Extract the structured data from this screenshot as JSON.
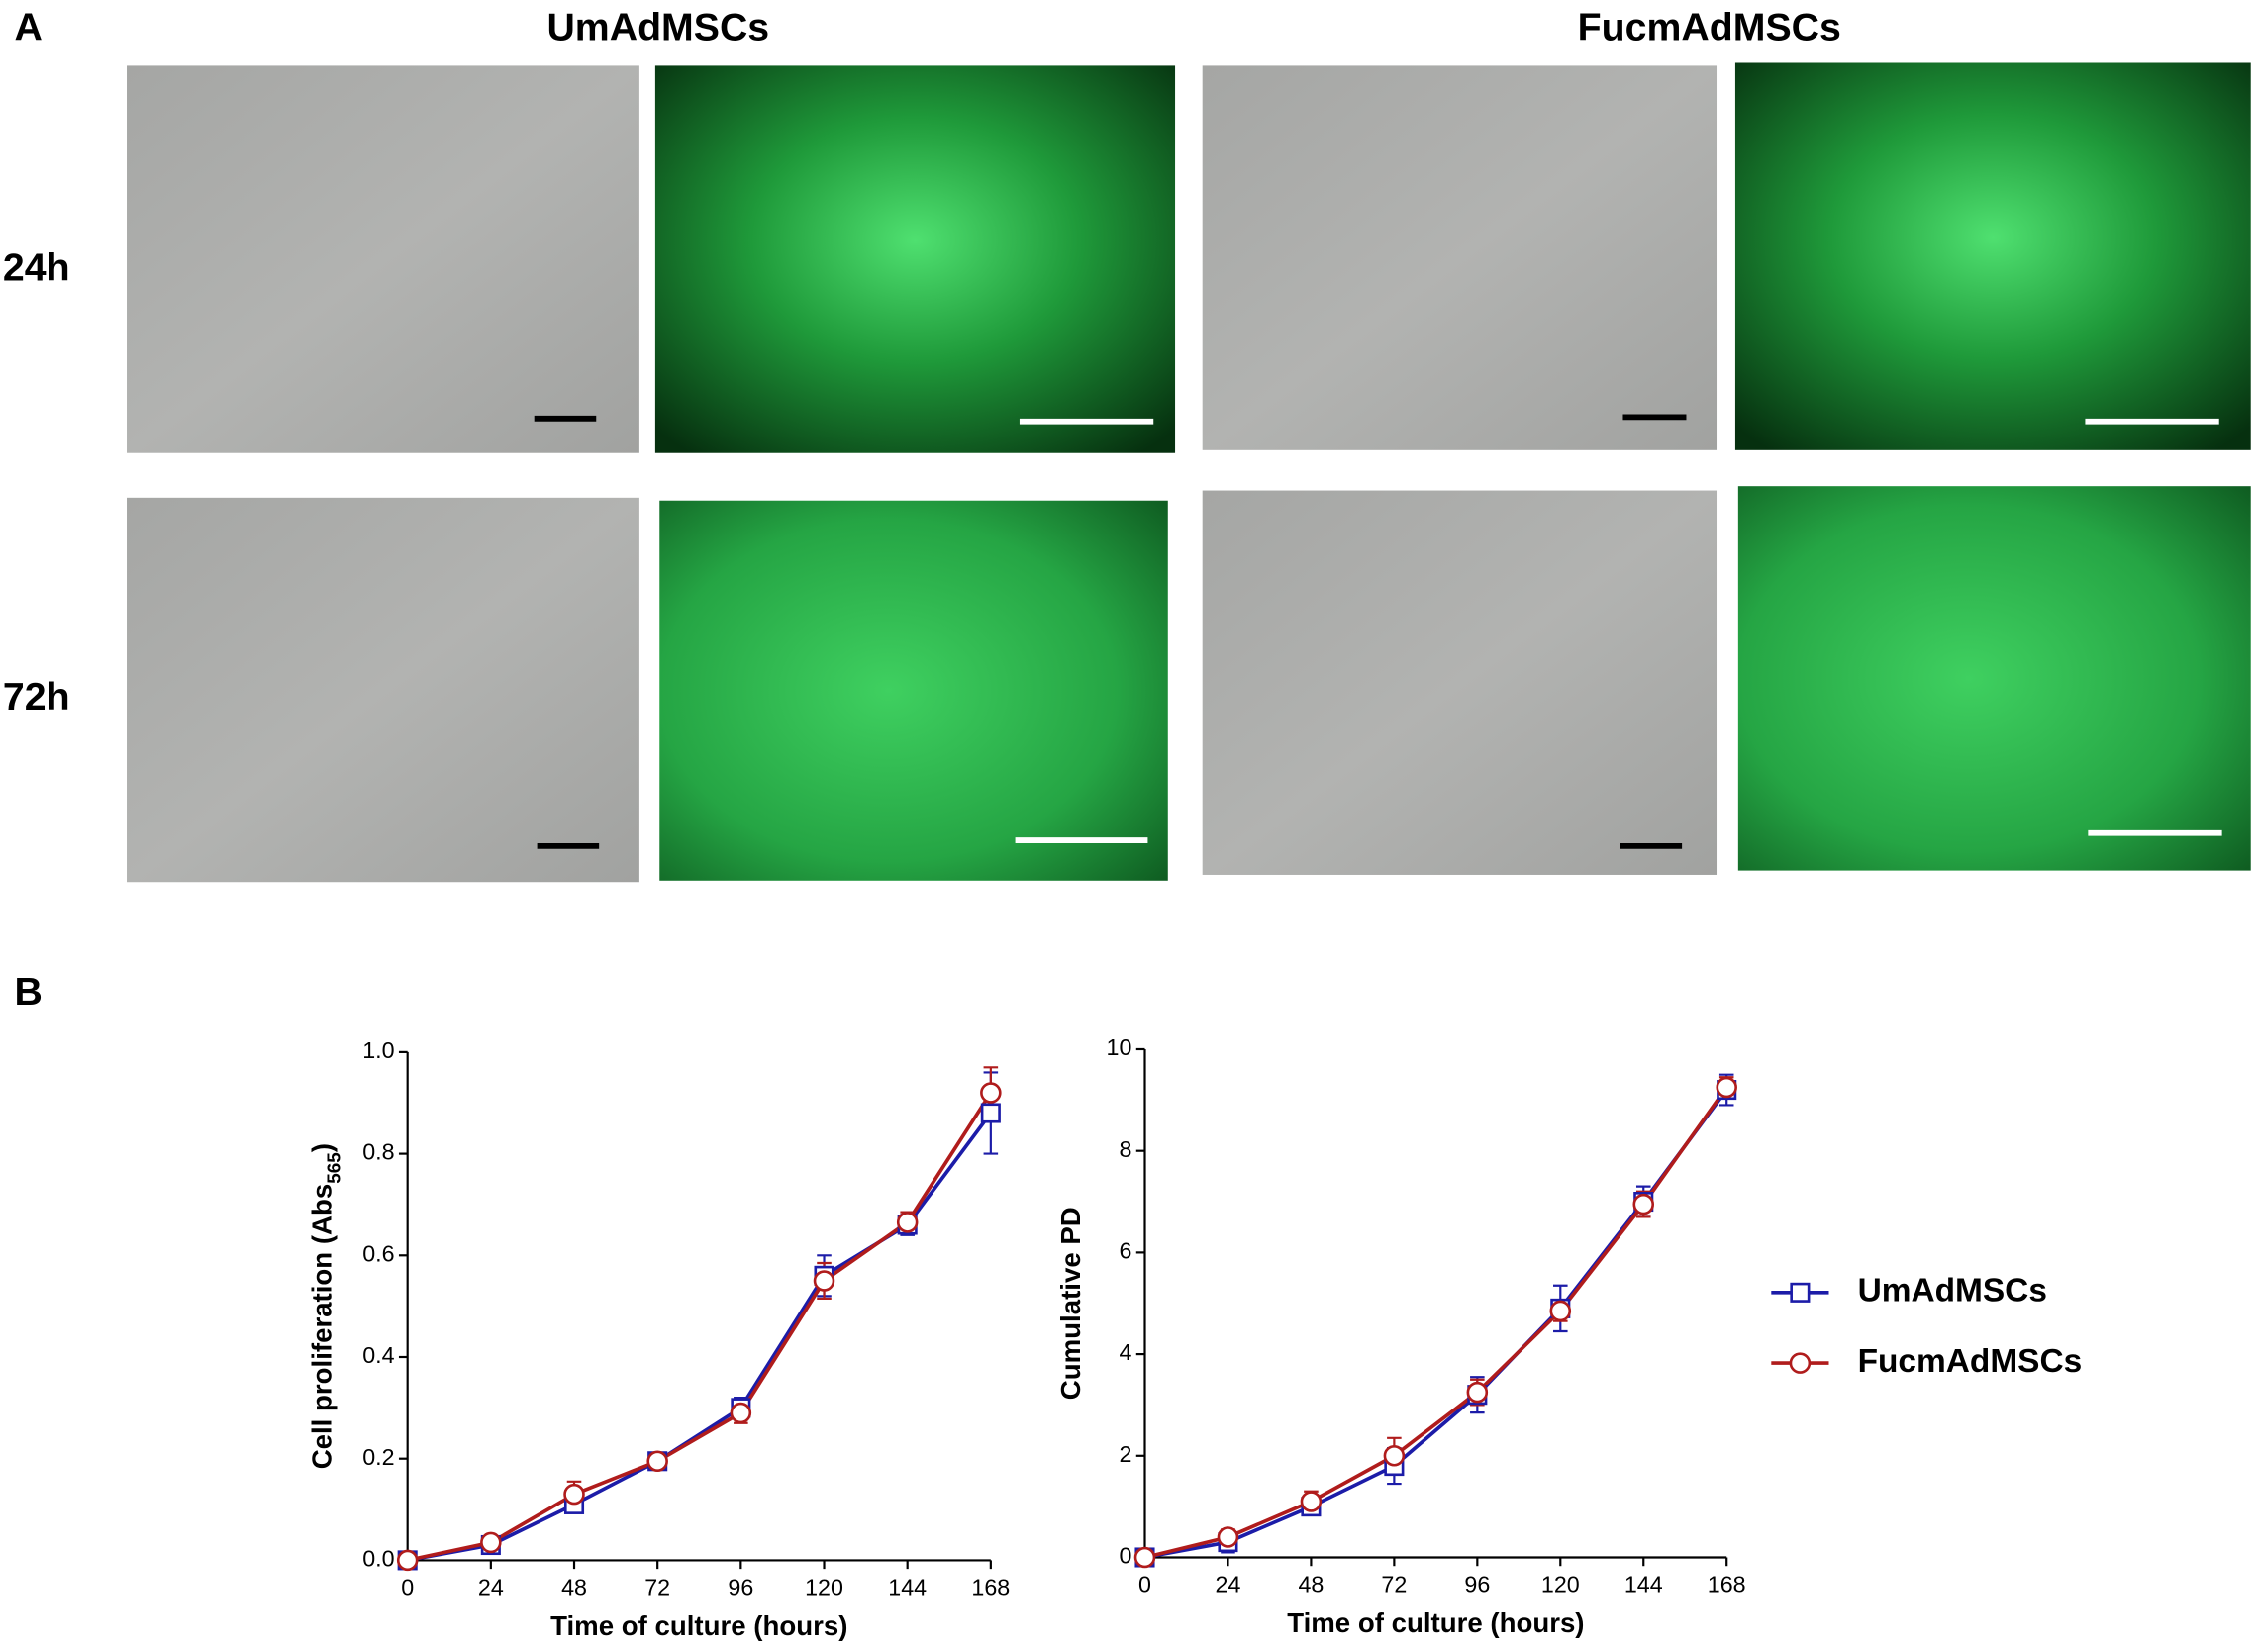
{
  "figure": {
    "panel_labels": [
      "A",
      "B"
    ],
    "column_titles": [
      "UmAdMSCs",
      "FucmAdMSCs"
    ],
    "row_labels": [
      "24h",
      "72h"
    ]
  },
  "chart_data": [
    {
      "type": "line",
      "xlabel": "Time of culture (hours)",
      "ylabel": [
        "Cell proliferation (Abs",
        "565",
        ")"
      ],
      "x": [
        0,
        24,
        48,
        72,
        96,
        120,
        144,
        168
      ],
      "xlim": [
        0,
        168
      ],
      "xticks": [
        0,
        24,
        48,
        72,
        96,
        120,
        144,
        168
      ],
      "ylim": [
        0,
        1
      ],
      "yticks": [
        {
          "value": 0,
          "label": "0.0"
        },
        0.2,
        0.4,
        0.6,
        0.8,
        {
          "value": 1,
          "label": "1.0"
        }
      ],
      "series": [
        {
          "color": "#1c1ca8",
          "marker": "square",
          "values": [
            0,
            0.03,
            0.11,
            0.195,
            0.3,
            0.56,
            0.66,
            0.88
          ],
          "error": [
            0.005,
            0.01,
            0.01,
            0.008,
            0.02,
            0.04,
            0.02,
            0.08
          ]
        },
        {
          "color": "#b01c1c",
          "marker": "circle",
          "values": [
            0,
            0.035,
            0.13,
            0.195,
            0.29,
            0.55,
            0.665,
            0.92
          ],
          "error": [
            0.005,
            0.005,
            0.025,
            0.008,
            0.02,
            0.035,
            0.02,
            0.05
          ]
        }
      ]
    },
    {
      "type": "line",
      "xlabel": "Time of culture (hours)",
      "ylabel": [
        "Cumulative PD"
      ],
      "x": [
        0,
        24,
        48,
        72,
        96,
        120,
        144,
        168
      ],
      "xlim": [
        0,
        168
      ],
      "xticks": [
        0,
        24,
        48,
        72,
        96,
        120,
        144,
        168
      ],
      "ylim": [
        0,
        10
      ],
      "yticks": [
        0,
        2,
        4,
        6,
        8,
        10
      ],
      "legend": "right",
      "series": [
        {
          "name": "UmAdMSCs",
          "color": "#1c1ca8",
          "marker": "square",
          "values": [
            0,
            0.3,
            1.0,
            1.8,
            3.2,
            4.9,
            7.0,
            9.2
          ],
          "error": [
            0.05,
            0.2,
            0.15,
            0.35,
            0.35,
            0.45,
            0.3,
            0.3
          ]
        },
        {
          "name": "FucmAdMSCs",
          "color": "#b01c1c",
          "marker": "circle",
          "values": [
            0,
            0.4,
            1.1,
            2.0,
            3.25,
            4.85,
            6.95,
            9.25
          ],
          "error": [
            0.05,
            0.15,
            0.2,
            0.35,
            0.25,
            0.2,
            0.25,
            0.2
          ]
        }
      ]
    }
  ]
}
